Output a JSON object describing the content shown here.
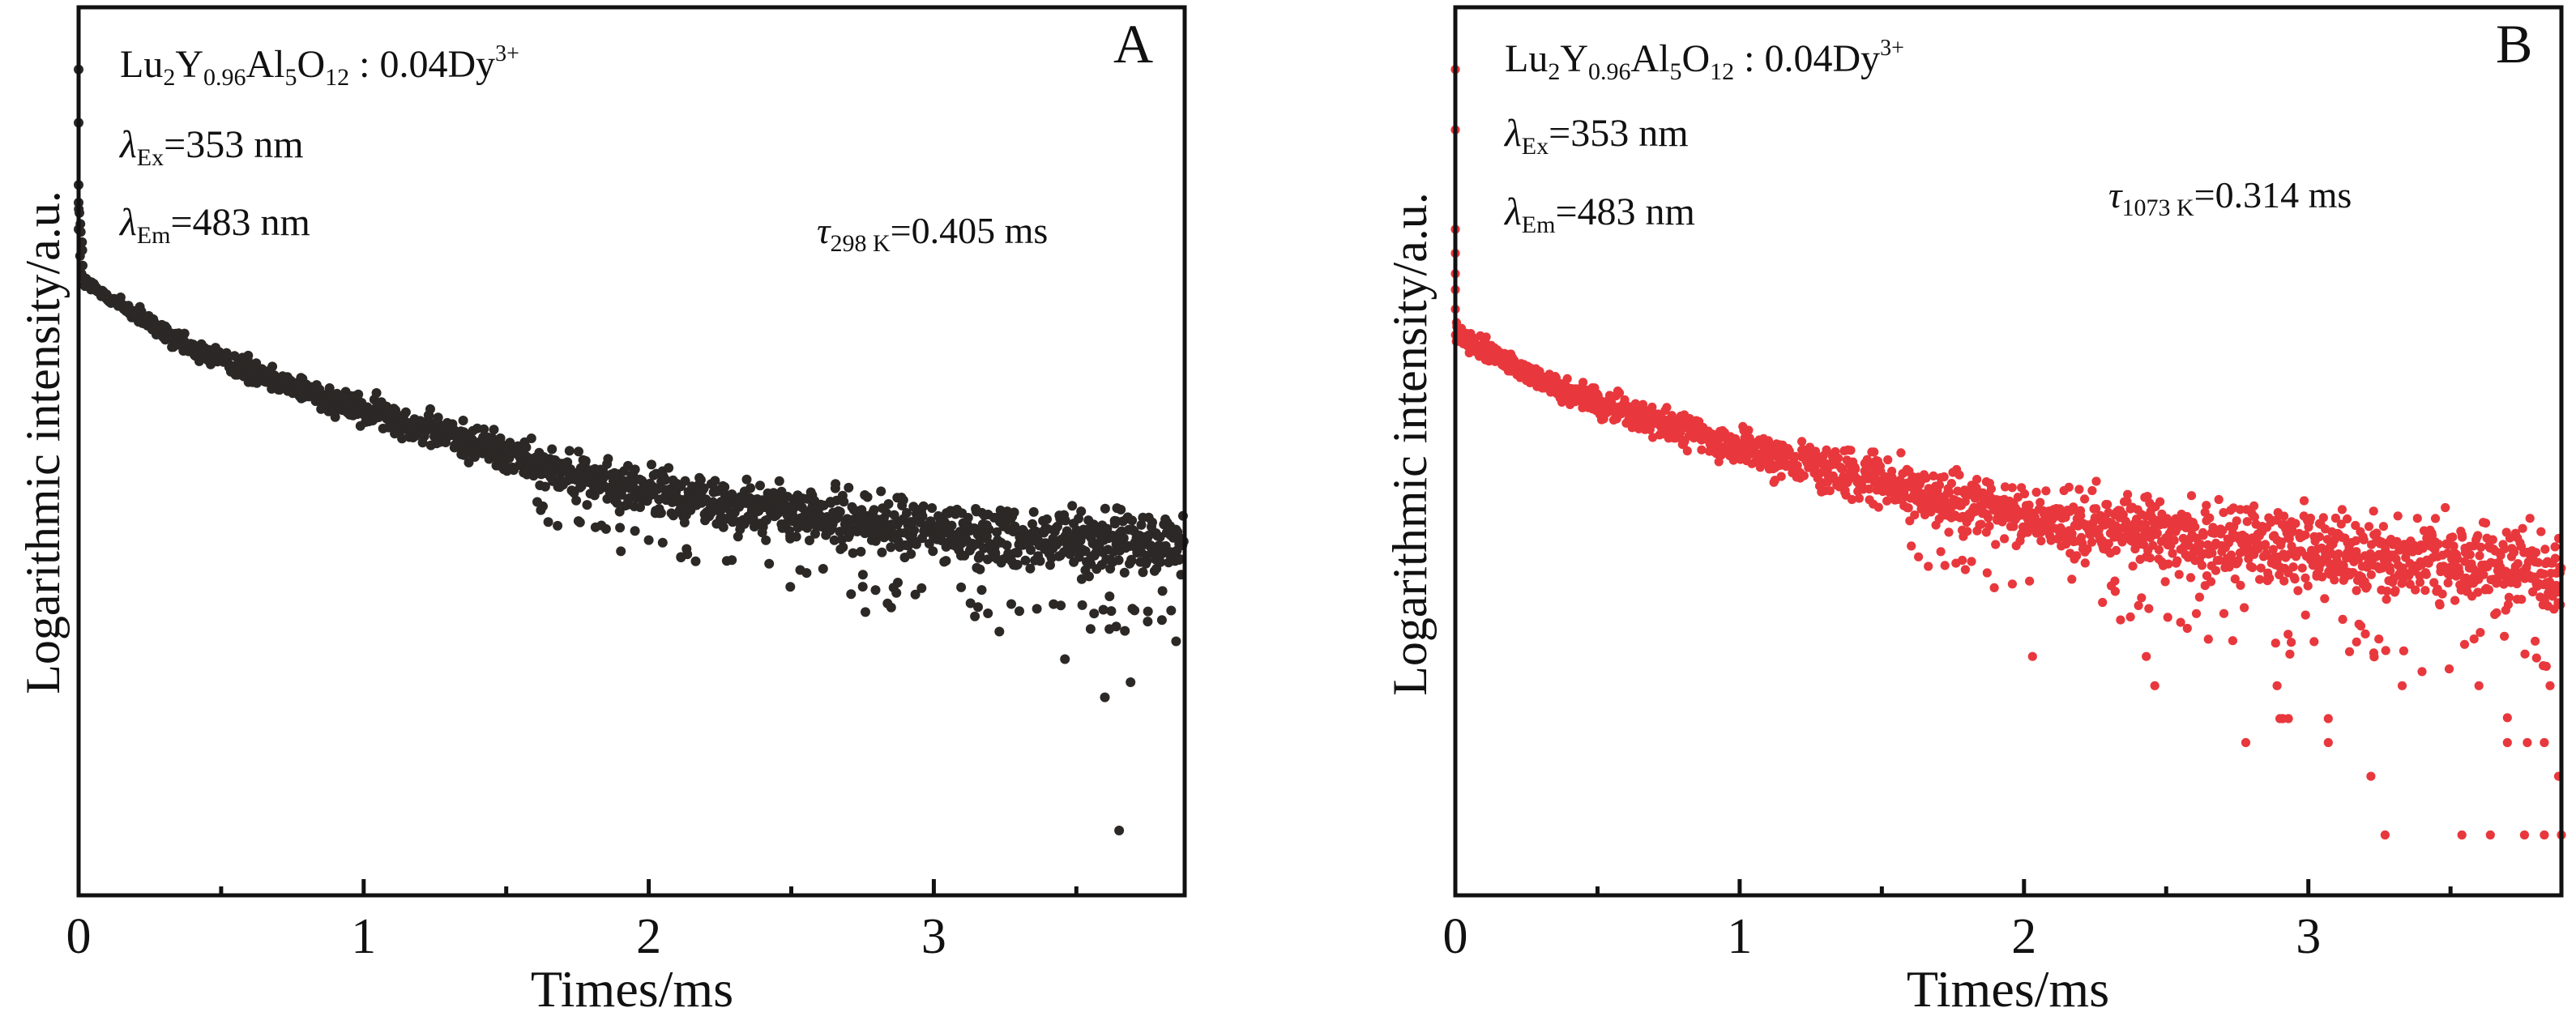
{
  "chart_data": [
    {
      "type": "scatter",
      "panel_label": "A",
      "xlabel": "Times/ms",
      "ylabel": "Logarithmic intensity/a.u.",
      "xlim": [
        0,
        3.88
      ],
      "ylim": [
        0,
        1
      ],
      "x_ticks": [
        "0",
        "1",
        "2",
        "3"
      ],
      "x_tick_values": [
        0,
        1,
        2,
        3
      ],
      "x_minor_tick_values": [
        0.5,
        1.5,
        2.5,
        3.5
      ],
      "y_ticks": [],
      "grid": false,
      "annotations": {
        "compound": {
          "base": [
            "Lu",
            "2",
            "Y",
            "0.96",
            "Al",
            "5",
            "O",
            "12"
          ],
          "dopant": " : 0.04Dy",
          "charge": "3+"
        },
        "excitation": {
          "symbol": "λ",
          "sub": "Ex",
          "value": "=353 nm"
        },
        "emission": {
          "symbol": "λ",
          "sub": "Em",
          "value": "=483 nm"
        },
        "lifetime": {
          "symbol": "τ",
          "sub": "298 K",
          "value": "=0.405 ms"
        }
      },
      "series": [
        {
          "name": "298 K decay",
          "color": "#2b2826",
          "trend": {
            "t": [
              0.0,
              0.02,
              0.1,
              0.36,
              0.87,
              1.38,
              1.89,
              2.5,
              3.0,
              3.88
            ],
            "y": [
              0.78,
              0.69,
              0.675,
              0.62,
              0.56,
              0.51,
              0.46,
              0.43,
              0.41,
              0.39
            ]
          },
          "spread": {
            "t": [
              0,
              1,
              2,
              3,
              3.88
            ],
            "halfwidth": [
              0.012,
              0.025,
              0.04,
              0.05,
              0.055
            ]
          },
          "initial_points": {
            "t": [
              0,
              0,
              0,
              0,
              0,
              0.005,
              0.01
            ],
            "y": [
              0.93,
              0.87,
              0.8,
              0.78,
              0.75,
              0.72,
              0.7
            ]
          },
          "outliers": {
            "t": [
              3.65,
              3.6,
              3.69,
              3.46,
              3.85,
              2.76,
              3.23,
              2.0,
              3.3,
              3.55,
              3.8
            ],
            "y": [
              0.073,
              0.223,
              0.24,
              0.266,
              0.286,
              0.319,
              0.297,
              0.4,
              0.32,
              0.3,
              0.31
            ]
          },
          "n_points": 1500
        }
      ]
    },
    {
      "type": "scatter",
      "panel_label": "B",
      "xlabel": "Times/ms",
      "ylabel": "Logarithmic intensity/a.u.",
      "xlim": [
        0,
        3.89
      ],
      "ylim": [
        0,
        1
      ],
      "x_ticks": [
        "0",
        "1",
        "2",
        "3"
      ],
      "x_tick_values": [
        0,
        1,
        2,
        3
      ],
      "x_minor_tick_values": [
        0.5,
        1.5,
        2.5,
        3.5
      ],
      "y_ticks": [],
      "grid": false,
      "annotations": {
        "compound": {
          "base": [
            "Lu",
            "2",
            "Y",
            "0.96",
            "Al",
            "5",
            "O",
            "12"
          ],
          "dopant": " : 0.04Dy",
          "charge": "3+"
        },
        "excitation": {
          "symbol": "λ",
          "sub": "Ex",
          "value": "=353 nm"
        },
        "emission": {
          "symbol": "λ",
          "sub": "Em",
          "value": "=483 nm"
        },
        "lifetime": {
          "symbol": "τ",
          "sub": "1073 K",
          "value": "=0.314 ms"
        }
      },
      "series": [
        {
          "name": "1073 K decay",
          "color": "#e8383d",
          "trend": {
            "t": [
              0.0,
              0.02,
              0.37,
              0.88,
              1.39,
              1.91,
              2.5,
              3.0,
              3.89
            ],
            "y": [
              0.63,
              0.628,
              0.57,
              0.513,
              0.473,
              0.433,
              0.406,
              0.388,
              0.365
            ]
          },
          "spread": {
            "t": [
              0,
              1,
              2,
              3,
              3.89
            ],
            "halfwidth": [
              0.015,
              0.03,
              0.05,
              0.065,
              0.07
            ]
          },
          "initial_points": {
            "t": [
              0,
              0,
              0,
              0,
              0,
              0,
              0,
              0.004
            ],
            "y": [
              0.93,
              0.862,
              0.75,
              0.723,
              0.7,
              0.682,
              0.66,
              0.645
            ]
          },
          "outliers": {
            "t": [
              3.27,
              3.54,
              3.64,
              3.76,
              3.83,
              3.89,
              3.22,
              3.88,
              2.78,
              3.07,
              3.7,
              3.77,
              3.83,
              2.9,
              2.91,
              2.93,
              3.07,
              2.46,
              3.33,
              2.89,
              2.03,
              2.43,
              3.6,
              3.7,
              3.85
            ],
            "y": [
              0.068,
              0.068,
              0.068,
              0.068,
              0.068,
              0.068,
              0.134,
              0.134,
              0.172,
              0.172,
              0.172,
              0.172,
              0.172,
              0.199,
              0.199,
              0.199,
              0.199,
              0.236,
              0.236,
              0.236,
              0.269,
              0.269,
              0.236,
              0.2,
              0.236
            ]
          },
          "n_points": 1700
        }
      ]
    }
  ]
}
